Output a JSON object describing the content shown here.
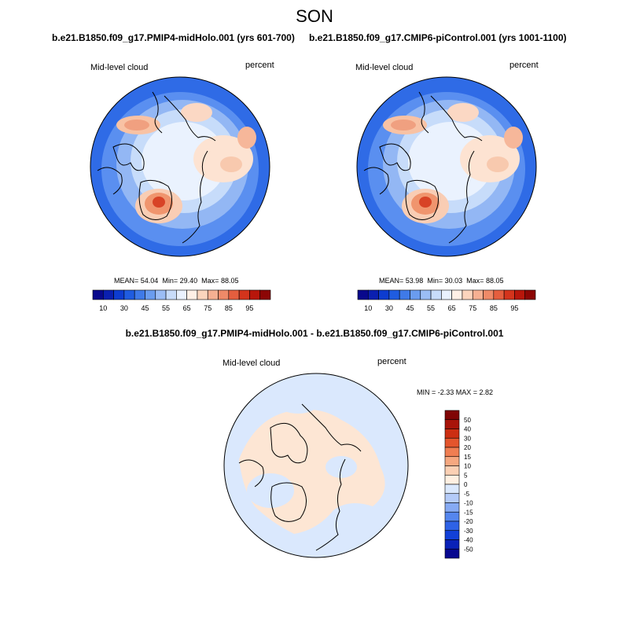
{
  "season": "SON",
  "panels": [
    {
      "title": "b.e21.B1850.f09_g17.PMIP4-midHolo.001 (yrs 601-700)",
      "variable": "Mid-level cloud",
      "units": "percent",
      "stats": {
        "mean": "54.04",
        "min": "29.40",
        "max": "88.05"
      }
    },
    {
      "title": "b.e21.B1850.f09_g17.CMIP6-piControl.001 (yrs 1001-1100)",
      "variable": "Mid-level cloud",
      "units": "percent",
      "stats": {
        "mean": "53.98",
        "min": "30.03",
        "max": "88.05"
      }
    }
  ],
  "diff_panel": {
    "title": "b.e21.B1850.f09_g17.PMIP4-midHolo.001 - b.e21.B1850.f09_g17.CMIP6-piControl.001",
    "variable": "Mid-level cloud",
    "units": "percent",
    "stats_text": "MIN =  -2.33 MAX =   2.82"
  },
  "labels": {
    "mean": "MEAN=",
    "min": "Min=",
    "max": "Max="
  },
  "colorbar_abs": {
    "colors": [
      "#08088c",
      "#0a1fb0",
      "#0d3cd0",
      "#1f5ce0",
      "#3f7ae8",
      "#6a9cef",
      "#9bbdf5",
      "#c8dcfa",
      "#eaf2fe",
      "#fff0e6",
      "#fbd5bd",
      "#f6b092",
      "#ef8a68",
      "#e55e3e",
      "#d4341c",
      "#b8160b",
      "#8c0605"
    ],
    "tick_labels": [
      "10",
      "30",
      "45",
      "55",
      "65",
      "75",
      "85",
      "95"
    ]
  },
  "colorbar_diff": {
    "colors": [
      "#080890",
      "#0a22b8",
      "#1240d8",
      "#2e62e6",
      "#5586ee",
      "#86aaf3",
      "#b4cbf8",
      "#dae8fd",
      "#fff0e2",
      "#fbd0b4",
      "#f6a880",
      "#f07e52",
      "#e4552c",
      "#cc2e12",
      "#a8140a",
      "#800505"
    ],
    "tick_labels": [
      "50",
      "40",
      "30",
      "20",
      "15",
      "10",
      "5",
      "0",
      "-5",
      "-10",
      "-15",
      "-20",
      "-30",
      "-40",
      "-50"
    ]
  }
}
